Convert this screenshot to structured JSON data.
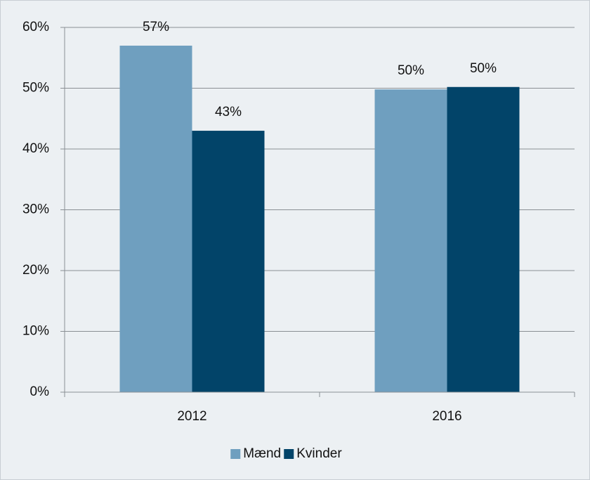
{
  "chart_data": {
    "type": "bar",
    "categories": [
      "2012",
      "2016"
    ],
    "series": [
      {
        "name": "Mænd",
        "color": "#6f9fbf",
        "values": [
          57,
          49.8
        ],
        "value_labels": [
          "57%",
          "50%"
        ]
      },
      {
        "name": "Kvinder",
        "color": "#024469",
        "values": [
          43,
          50.2
        ],
        "value_labels": [
          "43%",
          "50%"
        ]
      }
    ],
    "ylim": [
      0,
      60
    ],
    "yticks": [
      {
        "value": 0,
        "label": "0%"
      },
      {
        "value": 10,
        "label": "10%"
      },
      {
        "value": 20,
        "label": "20%"
      },
      {
        "value": 30,
        "label": "30%"
      },
      {
        "value": 40,
        "label": "40%"
      },
      {
        "value": 50,
        "label": "50%"
      },
      {
        "value": 60,
        "label": "60%"
      }
    ],
    "grid": true,
    "legend": "bottom"
  }
}
